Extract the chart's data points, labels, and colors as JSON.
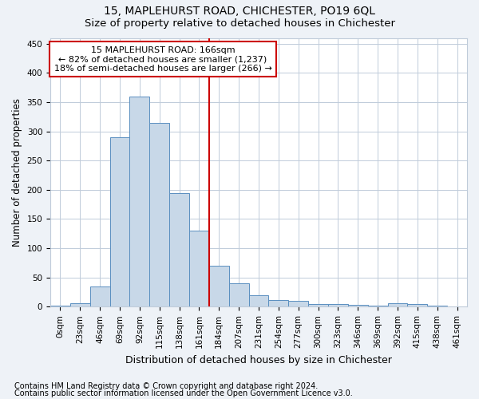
{
  "title": "15, MAPLEHURST ROAD, CHICHESTER, PO19 6QL",
  "subtitle": "Size of property relative to detached houses in Chichester",
  "xlabel": "Distribution of detached houses by size in Chichester",
  "ylabel": "Number of detached properties",
  "bin_labels": [
    "0sqm",
    "23sqm",
    "46sqm",
    "69sqm",
    "92sqm",
    "115sqm",
    "138sqm",
    "161sqm",
    "184sqm",
    "207sqm",
    "231sqm",
    "254sqm",
    "277sqm",
    "300sqm",
    "323sqm",
    "346sqm",
    "369sqm",
    "392sqm",
    "415sqm",
    "438sqm",
    "461sqm"
  ],
  "bar_heights": [
    2,
    6,
    35,
    290,
    360,
    315,
    195,
    130,
    70,
    40,
    20,
    12,
    10,
    5,
    4,
    3,
    2,
    6,
    4,
    2,
    1
  ],
  "bar_color": "#c8d8e8",
  "bar_edgecolor": "#5a8fc0",
  "property_line_x": 7.5,
  "vline_color": "#cc0000",
  "annotation_text": "15 MAPLEHURST ROAD: 166sqm\n← 82% of detached houses are smaller (1,237)\n18% of semi-detached houses are larger (266) →",
  "annotation_box_color": "#ffffff",
  "annotation_box_edgecolor": "#cc0000",
  "ylim": [
    0,
    460
  ],
  "yticks": [
    0,
    50,
    100,
    150,
    200,
    250,
    300,
    350,
    400,
    450
  ],
  "footer_line1": "Contains HM Land Registry data © Crown copyright and database right 2024.",
  "footer_line2": "Contains public sector information licensed under the Open Government Licence v3.0.",
  "bg_color": "#eef2f7",
  "plot_bg_color": "#ffffff",
  "grid_color": "#c0ccda",
  "title_fontsize": 10,
  "subtitle_fontsize": 9.5,
  "xlabel_fontsize": 9,
  "ylabel_fontsize": 8.5,
  "tick_fontsize": 7.5,
  "footer_fontsize": 7,
  "annotation_fontsize": 8
}
